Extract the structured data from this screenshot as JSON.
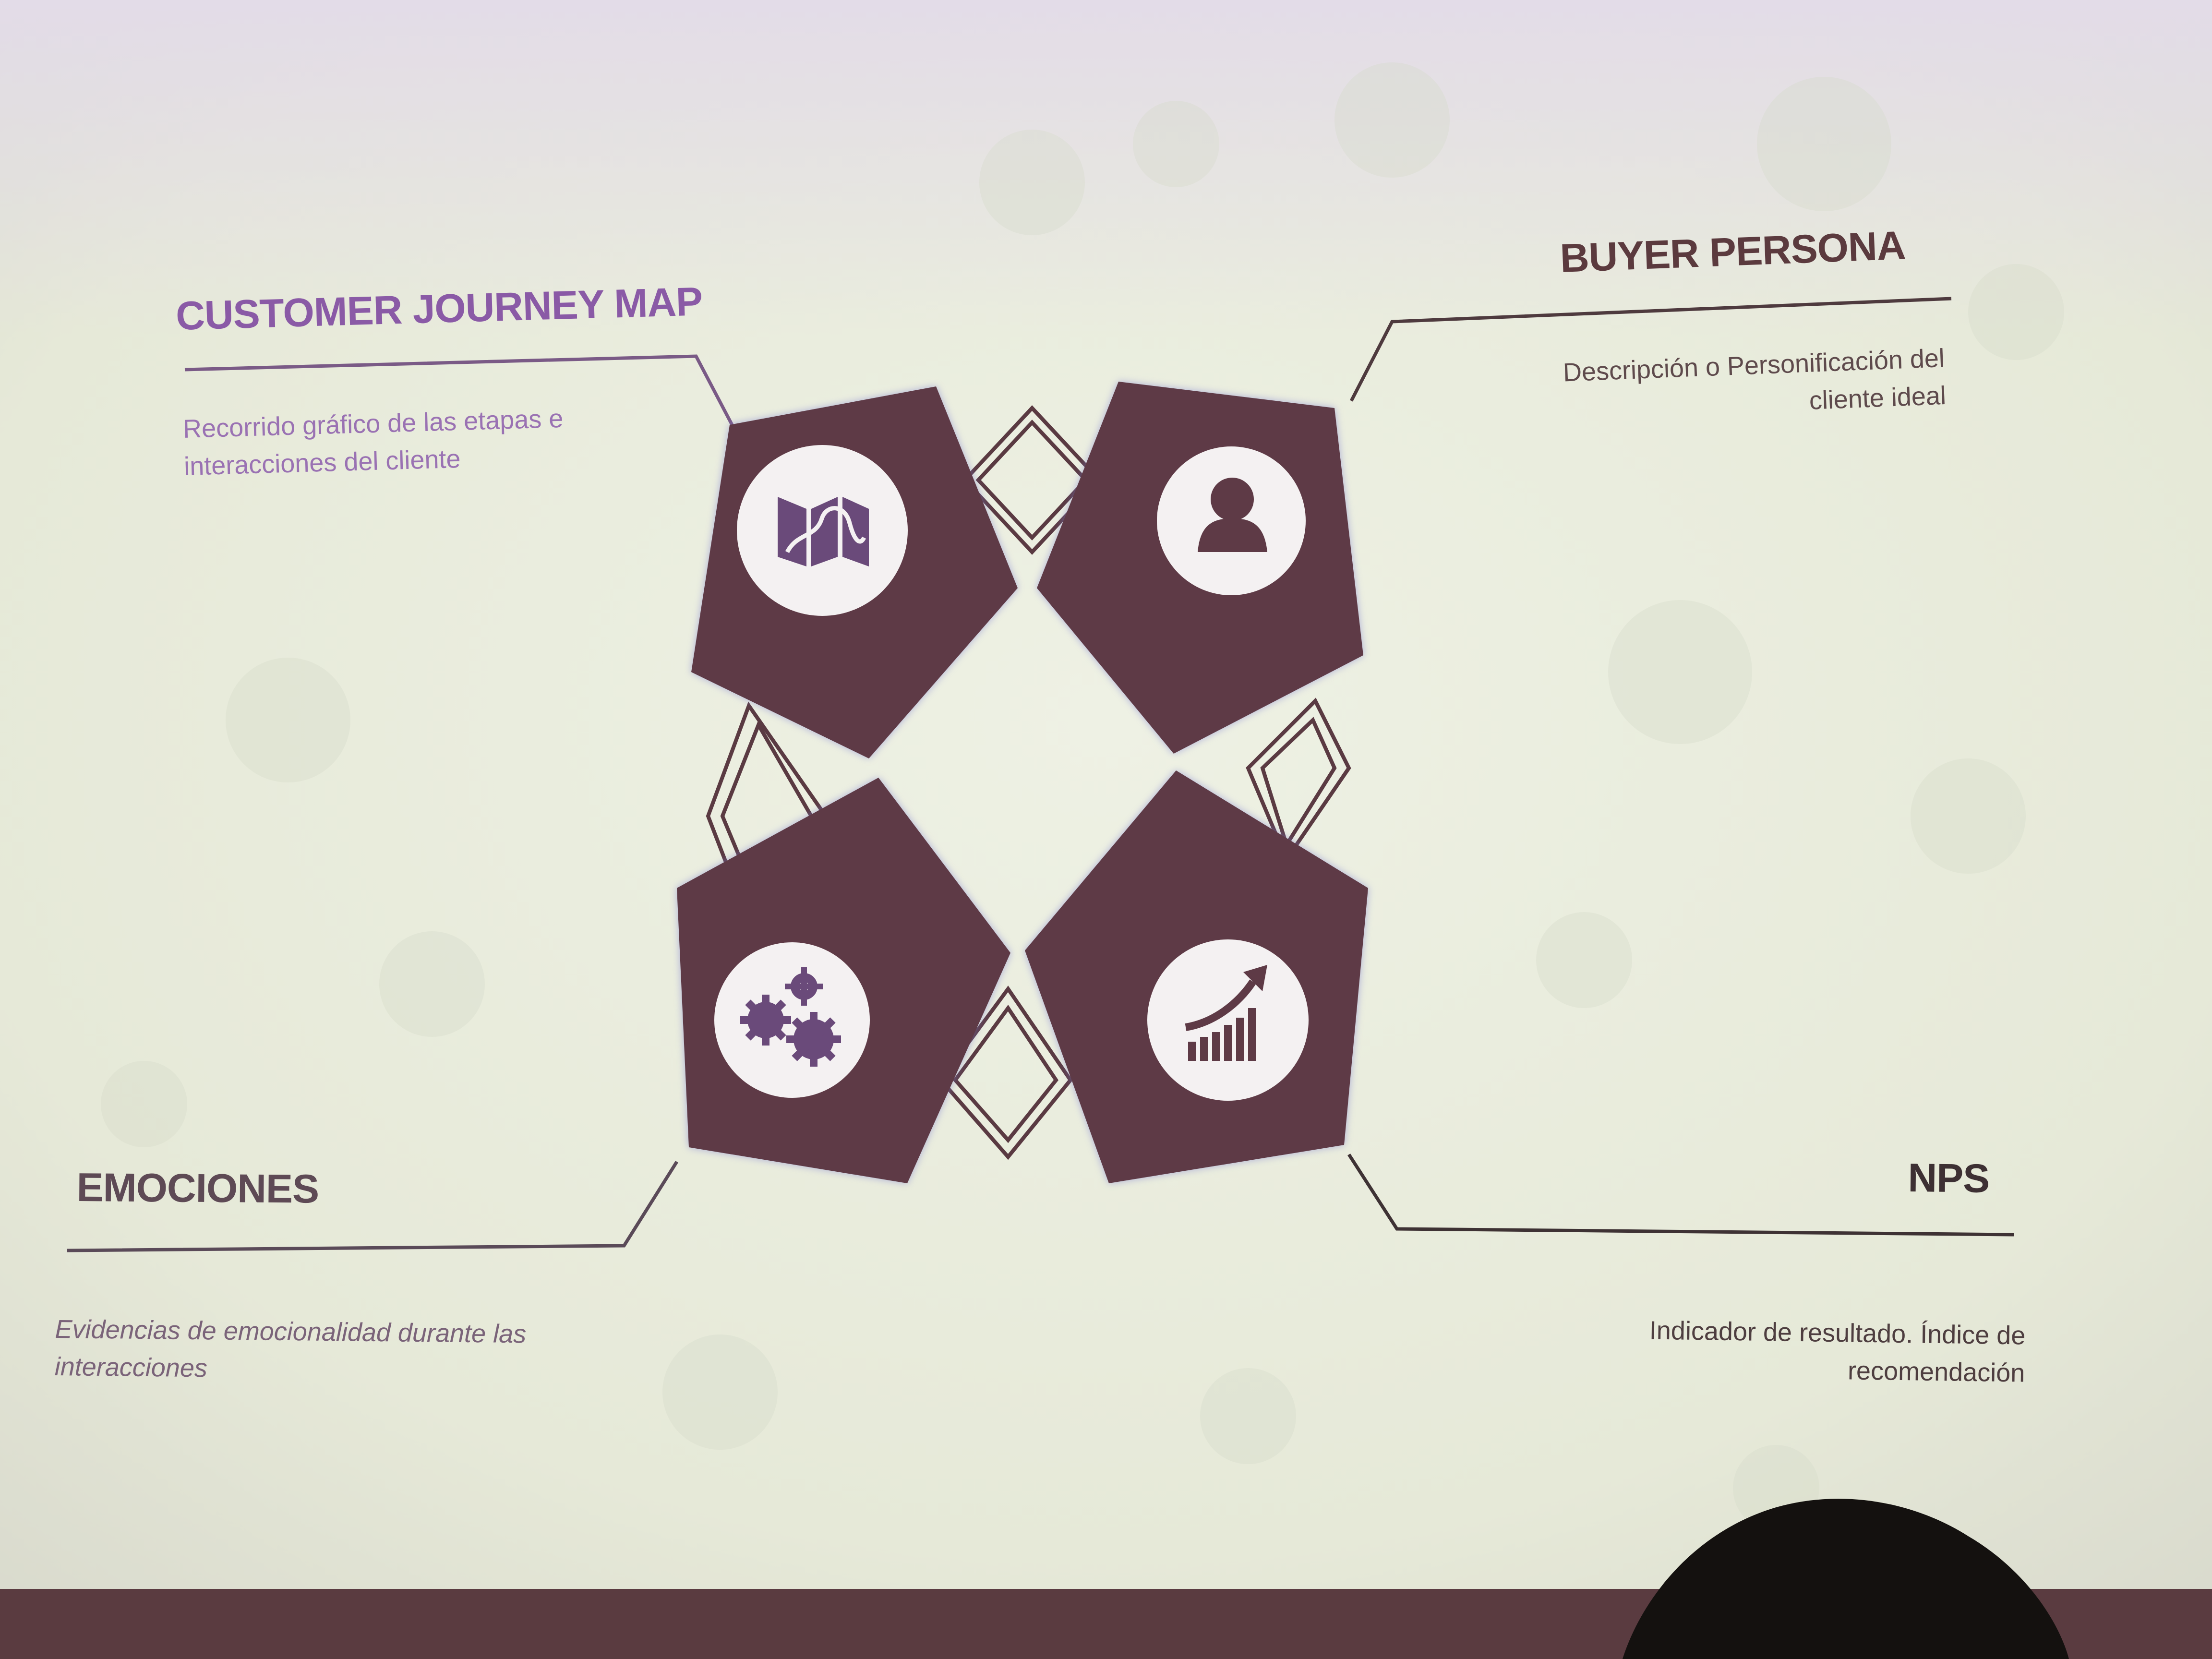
{
  "slide": {
    "colors": {
      "accent_purple": "#8a5aa6",
      "tile_brown": "#5e3a46",
      "background": "#e9ecdc",
      "icon_circle": "#f4f1f2"
    },
    "sections": {
      "customer_journey_map": {
        "title": "CUSTOMER JOURNEY MAP",
        "description": "Recorrido gráfico de las etapas e interacciones del cliente",
        "icon": "map-icon"
      },
      "buyer_persona": {
        "title": "BUYER PERSONA",
        "description": "Descripción o Personificación del cliente ideal",
        "icon": "person-icon"
      },
      "emociones": {
        "title": "EMOCIONES",
        "description": "Evidencias de emocionalidad durante las interacciones",
        "icon": "gears-icon"
      },
      "nps": {
        "title": "NPS",
        "description": "Indicador de resultado. Índice de recomendación",
        "icon": "growth-chart-icon"
      }
    }
  }
}
